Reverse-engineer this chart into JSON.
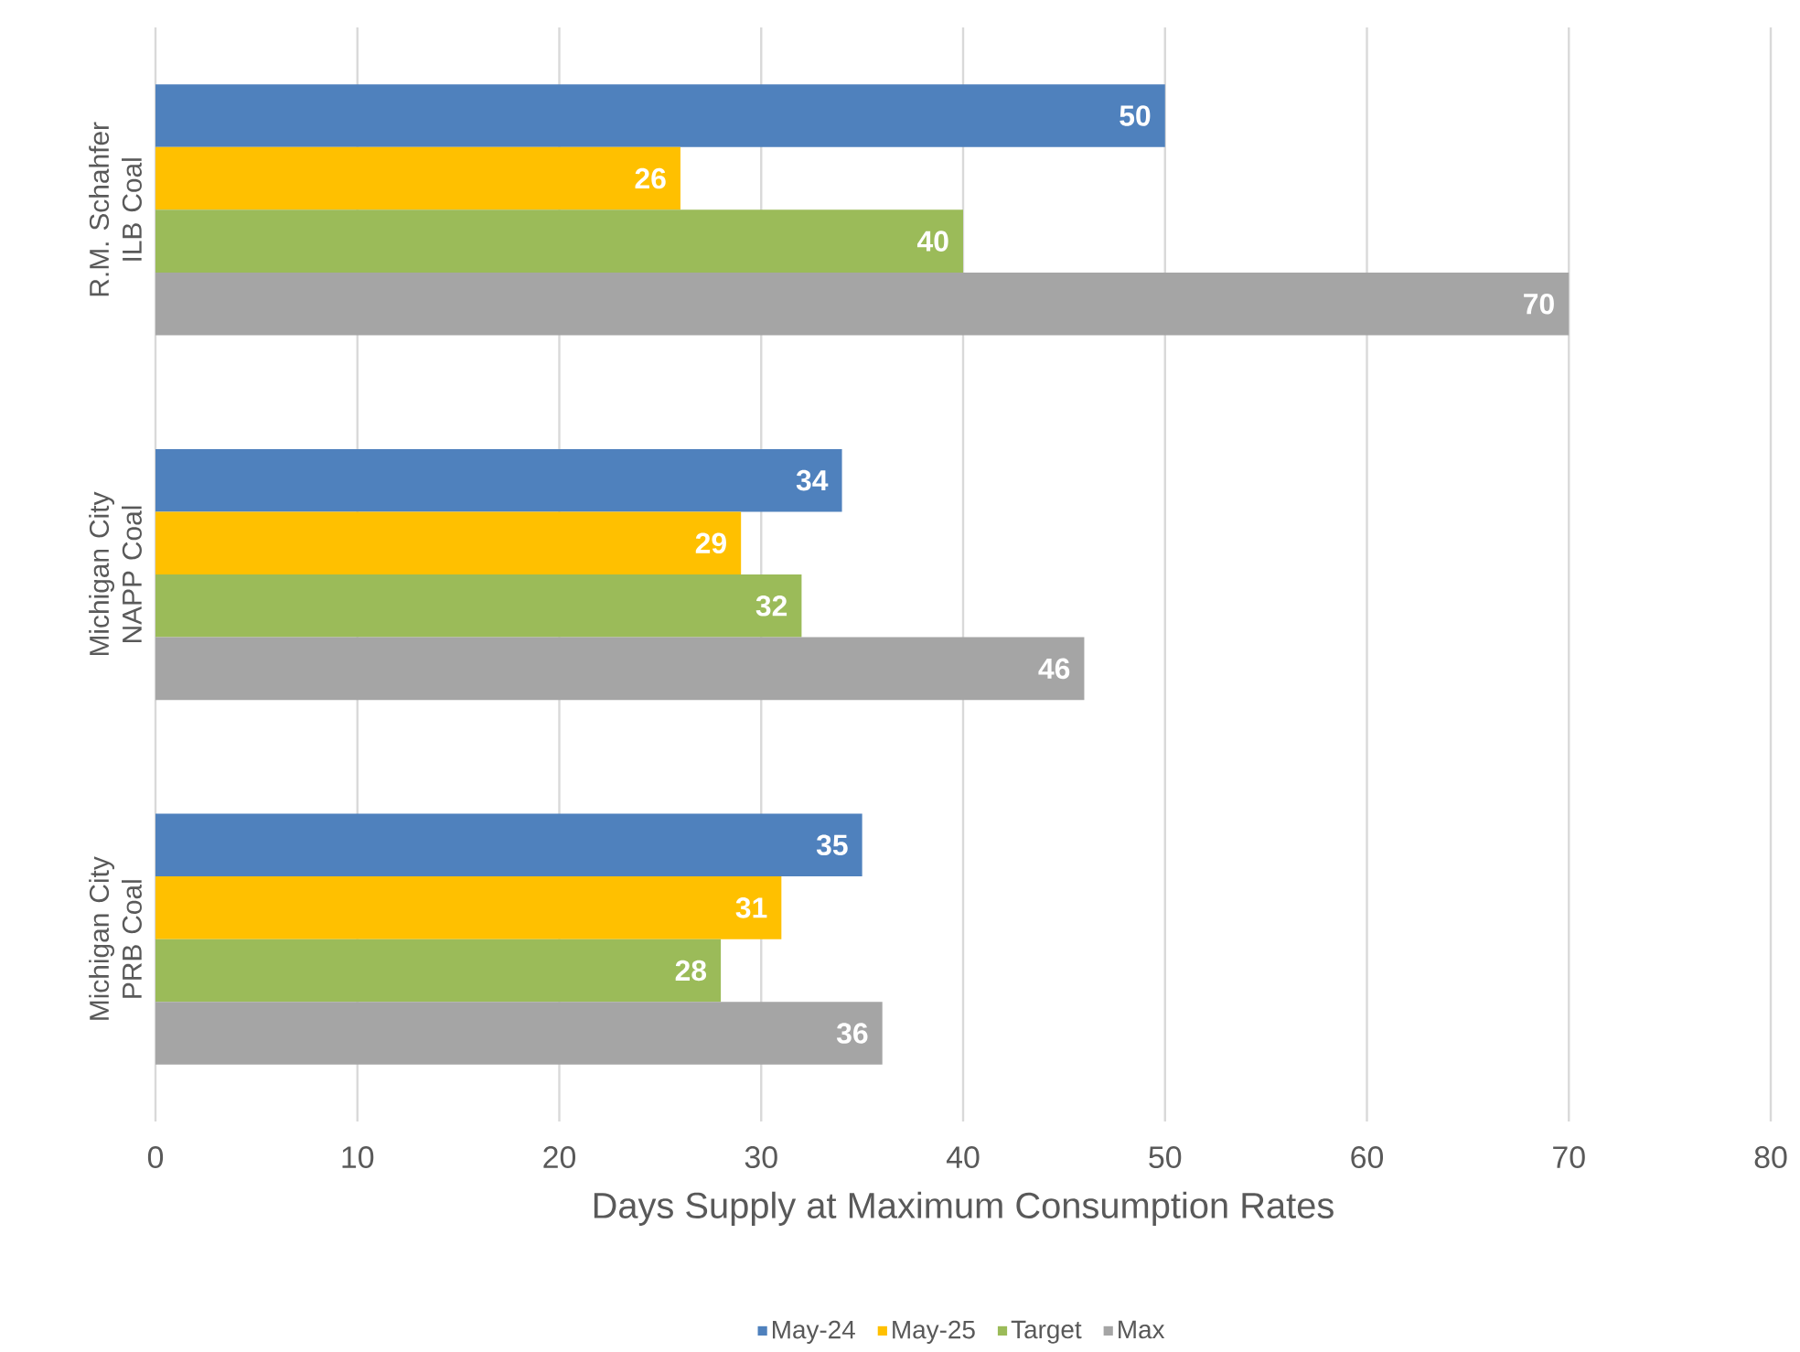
{
  "chart_data": {
    "type": "bar",
    "orientation": "horizontal",
    "categories": [
      "R.M. Schahfer ILB Coal",
      "Michigan City NAPP Coal",
      "Michigan City PRB Coal"
    ],
    "series": [
      {
        "name": "May-24",
        "color": "#4f81bd",
        "values": [
          50,
          34,
          35
        ]
      },
      {
        "name": "May-25",
        "color": "#ffc000",
        "values": [
          26,
          29,
          31
        ]
      },
      {
        "name": "Target",
        "color": "#9bbb59",
        "values": [
          40,
          32,
          28
        ]
      },
      {
        "name": "Max",
        "color": "#a5a5a5",
        "values": [
          70,
          46,
          36
        ]
      }
    ],
    "xlim": [
      0,
      80
    ],
    "xticks": [
      0,
      10,
      20,
      30,
      40,
      50,
      60,
      70,
      80
    ],
    "xlabel": "Days Supply at Maximum Consumption Rates",
    "grid": "x",
    "legend": "bottom",
    "data_labels": true
  }
}
